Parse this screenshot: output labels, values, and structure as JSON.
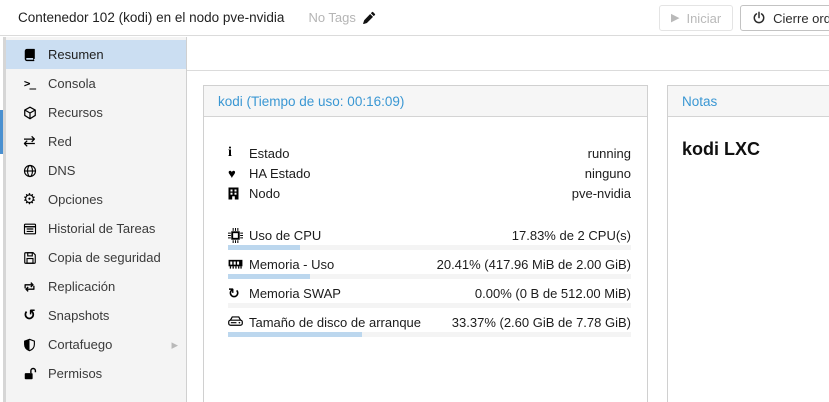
{
  "header": {
    "title": "Contenedor 102 (kodi) en el nodo pve-nvidia",
    "tags_label": "No Tags",
    "start_button": "Iniciar",
    "shutdown_button": "Cierre ordenado"
  },
  "icons": {
    "play": "▶",
    "gear": "⚙",
    "exchange": "⇄",
    "history": "↺",
    "refresh": "↻",
    "heart": "♥",
    "info": "i",
    "terminal": ">_",
    "caret_right": "▸"
  },
  "sidebar": {
    "items": [
      {
        "label": "Resumen",
        "icon": "book-icon",
        "selected": true
      },
      {
        "label": "Consola",
        "icon": "terminal-icon"
      },
      {
        "label": "Recursos",
        "icon": "cube-icon"
      },
      {
        "label": "Red",
        "icon": "exchange-arrows-icon"
      },
      {
        "label": "DNS",
        "icon": "globe-icon"
      },
      {
        "label": "Opciones",
        "icon": "gear-icon"
      },
      {
        "label": "Historial de Tareas",
        "icon": "task-list-icon"
      },
      {
        "label": "Copia de seguridad",
        "icon": "floppy-icon"
      },
      {
        "label": "Replicación",
        "icon": "retweet-icon"
      },
      {
        "label": "Snapshots",
        "icon": "history-icon"
      },
      {
        "label": "Cortafuego",
        "icon": "shield-icon",
        "has_submenu": true
      },
      {
        "label": "Permisos",
        "icon": "unlock-icon"
      }
    ]
  },
  "status_panel": {
    "title": "kodi (Tiempo de uso: 00:16:09)",
    "rows": [
      {
        "icon": "info-icon",
        "label": "Estado",
        "value": "running"
      },
      {
        "icon": "heartbeat-icon",
        "label": "HA Estado",
        "value": "ninguno"
      },
      {
        "icon": "building-icon",
        "label": "Nodo",
        "value": "pve-nvidia"
      }
    ],
    "meters": [
      {
        "icon": "cpu-icon",
        "label": "Uso de CPU",
        "value": "17.83% de 2 CPU(s)",
        "percent": 17.83
      },
      {
        "icon": "memory-icon",
        "label": "Memoria - Uso",
        "value": "20.41% (417.96 MiB de 2.00 GiB)",
        "percent": 20.41
      },
      {
        "icon": "swap-refresh-icon",
        "label": "Memoria SWAP",
        "value": "0.00% (0 B de 512.00 MiB)",
        "percent": 0
      },
      {
        "icon": "boot-disk-icon",
        "label": "Tamaño de disco de arranque",
        "value": "33.37% (2.60 GiB de 7.78 GiB)",
        "percent": 33.37
      }
    ]
  },
  "notes_panel": {
    "title": "Notas",
    "content": "kodi LXC"
  },
  "colors": {
    "accent_blue": "#3a97d3",
    "selected_item_bg": "#cbdef2",
    "meter_fill": "#bcd7ee",
    "splitter_thumb": "#4a90d0",
    "border": "#d0d0d0"
  }
}
